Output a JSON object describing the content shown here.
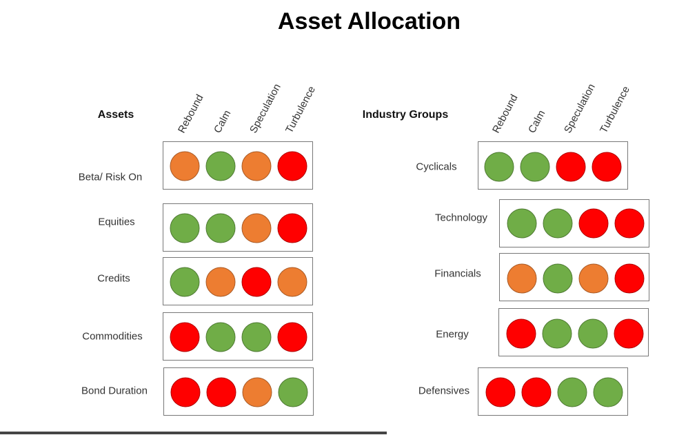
{
  "title": "Asset Allocation",
  "colors": {
    "green": "#70AD47",
    "orange": "#ED7D31",
    "red": "#FF0000"
  },
  "columns": [
    "Rebound",
    "Calm",
    "Speculation",
    "Turbulence"
  ],
  "groups": [
    {
      "heading": "Assets",
      "rows": [
        {
          "label": "Beta/ Risk On",
          "signals": [
            "orange",
            "green",
            "orange",
            "red"
          ]
        },
        {
          "label": "Equities",
          "signals": [
            "green",
            "green",
            "orange",
            "red"
          ]
        },
        {
          "label": "Credits",
          "signals": [
            "green",
            "orange",
            "red",
            "orange"
          ]
        },
        {
          "label": "Commodities",
          "signals": [
            "red",
            "green",
            "green",
            "red"
          ]
        },
        {
          "label": "Bond Duration",
          "signals": [
            "red",
            "red",
            "orange",
            "green"
          ]
        }
      ]
    },
    {
      "heading": "Industry Groups",
      "rows": [
        {
          "label": "Cyclicals",
          "signals": [
            "green",
            "green",
            "red",
            "red"
          ]
        },
        {
          "label": "Technology",
          "signals": [
            "green",
            "green",
            "red",
            "red"
          ]
        },
        {
          "label": "Financials",
          "signals": [
            "orange",
            "green",
            "orange",
            "red"
          ]
        },
        {
          "label": "Energy",
          "signals": [
            "red",
            "green",
            "green",
            "red"
          ]
        },
        {
          "label": "Defensives",
          "signals": [
            "red",
            "red",
            "green",
            "green"
          ]
        }
      ]
    }
  ]
}
